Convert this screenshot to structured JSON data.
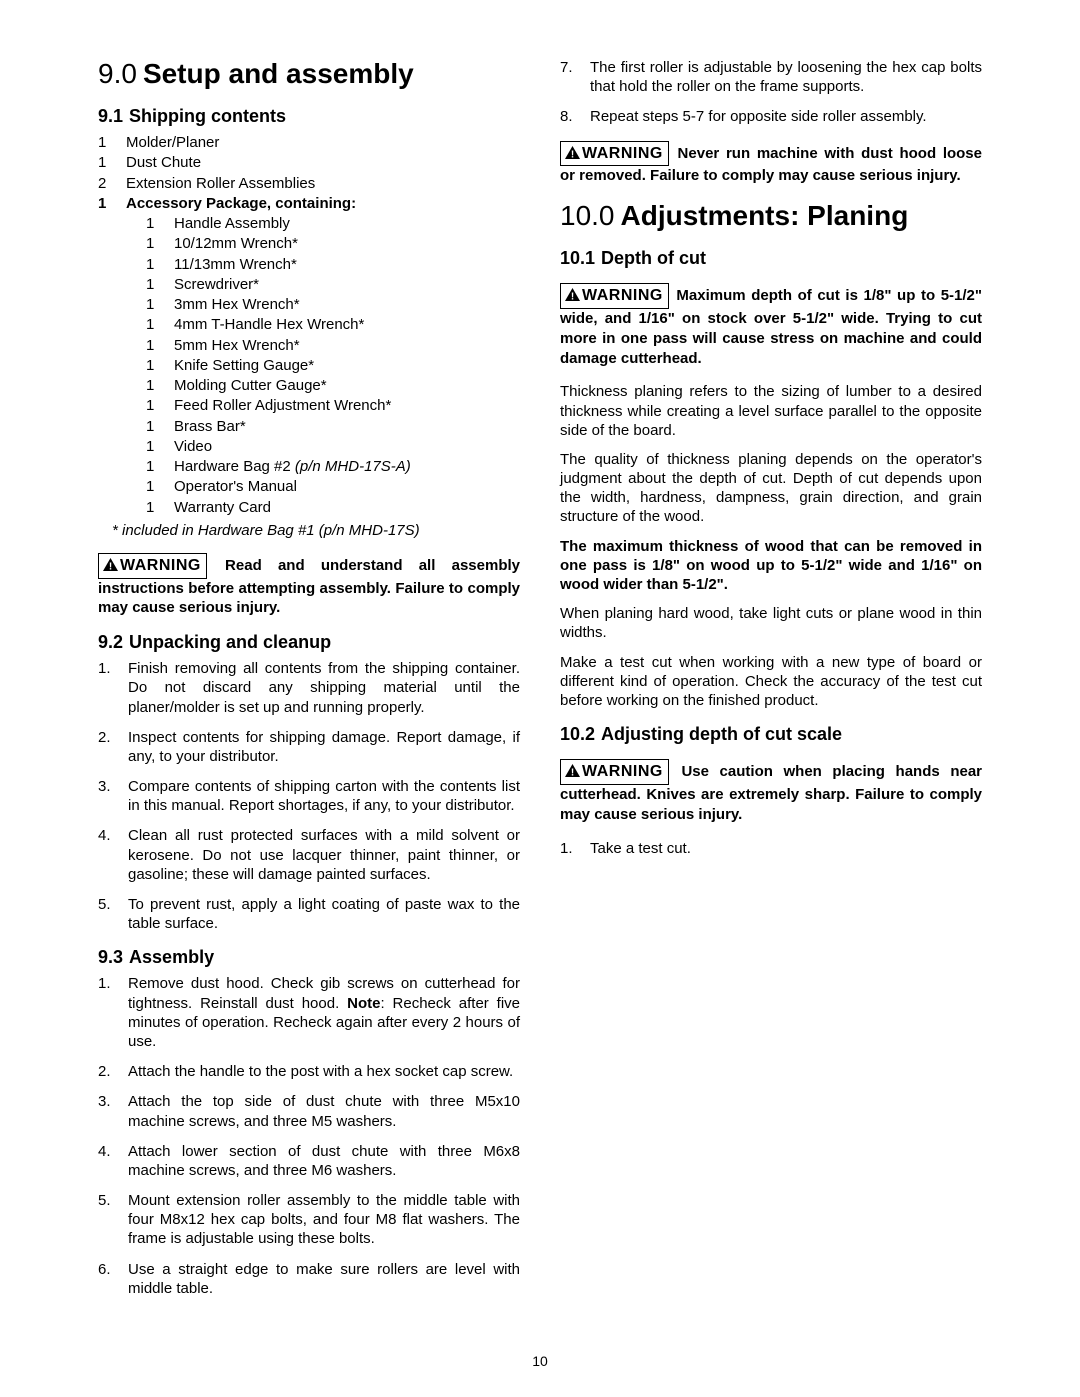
{
  "page_number": "10",
  "left": {
    "h1_num": "9.0",
    "h1_title": "Setup and assembly",
    "s91_num": "9.1",
    "s91_title": "Shipping contents",
    "contents": [
      {
        "qty": "1",
        "desc": "Molder/Planer",
        "indent": false,
        "bold": false
      },
      {
        "qty": "1",
        "desc": "Dust Chute",
        "indent": false,
        "bold": false
      },
      {
        "qty": "2",
        "desc": "Extension Roller Assemblies",
        "indent": false,
        "bold": false
      },
      {
        "qty": "1",
        "desc": "Accessory Package, containing:",
        "indent": false,
        "bold": true
      },
      {
        "qty": "1",
        "desc": "Handle Assembly",
        "indent": true,
        "bold": false
      },
      {
        "qty": "1",
        "desc": "10/12mm Wrench*",
        "indent": true,
        "bold": false
      },
      {
        "qty": "1",
        "desc": "11/13mm Wrench*",
        "indent": true,
        "bold": false
      },
      {
        "qty": "1",
        "desc": "Screwdriver*",
        "indent": true,
        "bold": false
      },
      {
        "qty": "1",
        "desc": "3mm Hex Wrench*",
        "indent": true,
        "bold": false
      },
      {
        "qty": "1",
        "desc": "4mm T-Handle Hex Wrench*",
        "indent": true,
        "bold": false
      },
      {
        "qty": "1",
        "desc": "5mm Hex Wrench*",
        "indent": true,
        "bold": false
      },
      {
        "qty": "1",
        "desc": "Knife Setting Gauge*",
        "indent": true,
        "bold": false
      },
      {
        "qty": "1",
        "desc": "Molding Cutter Gauge*",
        "indent": true,
        "bold": false
      },
      {
        "qty": "1",
        "desc": "Feed Roller Adjustment Wrench*",
        "indent": true,
        "bold": false
      },
      {
        "qty": "1",
        "desc": "Brass Bar*",
        "indent": true,
        "bold": false
      },
      {
        "qty": "1",
        "desc": "Video",
        "indent": true,
        "bold": false
      },
      {
        "qty": "1",
        "desc_pre": "Hardware Bag #2 ",
        "desc_ital": "(p/n MHD-17S-A)",
        "indent": true,
        "bold": false,
        "mixed": true
      },
      {
        "qty": "1",
        "desc": "Operator's Manual",
        "indent": true,
        "bold": false
      },
      {
        "qty": "1",
        "desc": "Warranty Card",
        "indent": true,
        "bold": false
      }
    ],
    "footnote": "* included in Hardware Bag #1 (p/n MHD-17S)",
    "warn1": "Read and understand all assembly instructions before attempting assembly. Failure to comply may cause serious injury.",
    "s92_num": "9.2",
    "s92_title": "Unpacking and cleanup",
    "s92_items": [
      "Finish removing all contents from the shipping container. Do not discard any shipping material until the planer/molder is set up and running properly.",
      "Inspect contents for shipping damage. Report damage, if any, to your distributor.",
      "Compare contents of shipping carton with the contents list in this manual. Report shortages, if any, to your distributor.",
      "Clean all rust protected surfaces with a mild solvent or kerosene. Do not use lacquer thinner, paint thinner, or gasoline; these will damage painted surfaces.",
      "To prevent rust, apply a light coating of paste wax to the table surface."
    ],
    "s93_num": "9.3",
    "s93_title": "Assembly",
    "s93_item1_pre": "Remove dust hood. Check gib screws on cutterhead for tightness. Reinstall dust hood. ",
    "s93_item1_note": "Note",
    "s93_item1_post": ": Recheck after five minutes of operation. Recheck again after every 2 hours of use.",
    "s93_item2": "Attach the handle to the post with a hex socket cap screw."
  },
  "right": {
    "s93_cont": [
      "Attach the top side of dust chute with three M5x10 machine screws, and three M5 washers.",
      "Attach lower section of dust chute with three M6x8 machine screws, and three M6 washers.",
      "Mount extension roller assembly to the middle table with four M8x12 hex cap bolts, and four M8 flat washers. The frame is adjustable using these bolts.",
      "Use a straight edge to make sure rollers are level with middle table.",
      "The first roller is adjustable by loosening the hex cap bolts that hold the roller on the frame supports.",
      "Repeat steps 5-7 for opposite side roller assembly."
    ],
    "warn2": "Never run machine with dust hood loose or removed. Failure to comply may cause serious injury.",
    "h1_num": "10.0",
    "h1_title": "Adjustments: Planing",
    "s101_num": "10.1",
    "s101_title": "Depth of cut",
    "warn3": "Maximum depth of cut is 1/8\" up to 5-1/2\" wide, and 1/16\" on stock over 5-1/2\" wide. Trying to cut more in one pass will cause stress on machine and could damage cutterhead.",
    "p1": "Thickness planing refers to the sizing of lumber to a desired thickness while creating a level surface parallel to the opposite side of the board.",
    "p2": "The quality of thickness planing depends on the operator's judgment about the depth of cut. Depth of cut depends upon the width, hardness, dampness, grain direction, and grain structure of the wood.",
    "p3": "The maximum thickness of wood that can be removed in one pass is 1/8\" on wood up to 5-1/2\" wide and 1/16\" on wood wider than 5-1/2\".",
    "p4": "When planing hard wood, take light cuts or plane wood in thin widths.",
    "p5": "Make a test cut when working with a new type of board or different kind of operation. Check the accuracy of the test cut before working on the finished product.",
    "s102_num": "10.2",
    "s102_title": "Adjusting depth of cut scale",
    "warn4": "Use caution when placing hands near cutterhead. Knives are extremely sharp. Failure to comply may cause serious injury.",
    "s102_item1": "Take a test cut."
  },
  "warning_label": "WARNING"
}
